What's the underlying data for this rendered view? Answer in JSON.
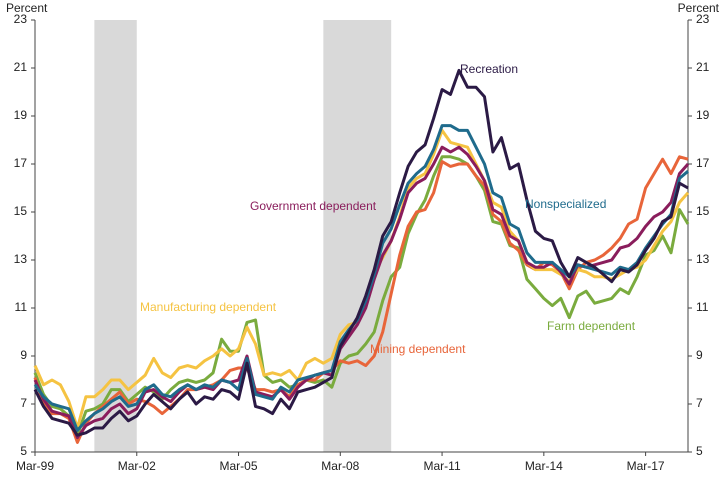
{
  "chart_data": {
    "type": "line",
    "y_label": "Percent",
    "y2_label": "Percent",
    "categories": [
      "Mar-99",
      null,
      null,
      null,
      null,
      null,
      null,
      null,
      null,
      null,
      null,
      null,
      "Mar-02",
      null,
      null,
      null,
      null,
      null,
      null,
      null,
      null,
      null,
      null,
      null,
      "Mar-05",
      null,
      null,
      null,
      null,
      null,
      null,
      null,
      null,
      null,
      null,
      null,
      "Mar-08",
      null,
      null,
      null,
      null,
      null,
      null,
      null,
      null,
      null,
      null,
      null,
      "Mar-11",
      null,
      null,
      null,
      null,
      null,
      null,
      null,
      null,
      null,
      null,
      null,
      "Mar-14",
      null,
      null,
      null,
      null,
      null,
      null,
      null,
      null,
      null,
      null,
      null,
      "Mar-17",
      null,
      null,
      null,
      null,
      null
    ],
    "recessions": [
      {
        "start": 7,
        "end": 12
      },
      {
        "start": 34,
        "end": 42
      }
    ],
    "recession_color": "#d9d9d9",
    "ylim": [
      5,
      23
    ],
    "yticks": [
      5,
      7,
      9,
      11,
      13,
      15,
      17,
      19,
      21,
      23
    ],
    "y2lim": [
      5,
      23
    ],
    "y2ticks": [
      5,
      7,
      9,
      11,
      13,
      15,
      17,
      19,
      21,
      23
    ],
    "grid": false,
    "series": [
      {
        "name": "Recreation",
        "color": "#2b1a45",
        "values": [
          7.6,
          6.9,
          6.4,
          6.3,
          6.2,
          5.7,
          5.8,
          6.0,
          6.0,
          6.4,
          6.7,
          6.3,
          6.5,
          7.0,
          7.4,
          7.1,
          6.8,
          7.2,
          7.5,
          7.0,
          7.3,
          7.2,
          7.6,
          7.5,
          7.2,
          8.7,
          6.9,
          6.8,
          6.6,
          7.2,
          6.8,
          7.5,
          7.6,
          7.7,
          7.9,
          8.1,
          9.4,
          10.0,
          10.6,
          11.5,
          12.6,
          14.0,
          14.6,
          15.8,
          16.9,
          17.5,
          17.8,
          18.9,
          20.1,
          19.9,
          20.9,
          20.2,
          20.2,
          19.8,
          17.5,
          18.1,
          16.8,
          17.0,
          15.5,
          14.2,
          13.9,
          13.8,
          12.9,
          12.3,
          13.1,
          12.9,
          12.7,
          12.4,
          12.1,
          12.6,
          12.5,
          12.8,
          13.4,
          13.9,
          14.6,
          14.8,
          16.2,
          16.0
        ]
      },
      {
        "name": "Nonspecialized",
        "color": "#1f6b8c",
        "values": [
          7.8,
          7.3,
          7.0,
          6.9,
          6.8,
          5.9,
          6.3,
          6.6,
          6.8,
          7.1,
          7.3,
          6.9,
          7.0,
          7.6,
          7.8,
          7.4,
          7.3,
          7.6,
          7.8,
          7.6,
          7.8,
          7.7,
          8.0,
          7.9,
          7.6,
          8.9,
          7.4,
          7.3,
          7.2,
          7.7,
          7.5,
          8.0,
          8.1,
          8.2,
          8.3,
          8.4,
          9.6,
          10.1,
          10.5,
          11.3,
          12.4,
          13.7,
          14.3,
          15.3,
          16.2,
          16.6,
          16.9,
          17.6,
          18.6,
          18.6,
          18.4,
          18.4,
          17.7,
          17.0,
          15.8,
          15.6,
          14.5,
          14.3,
          13.3,
          12.9,
          12.9,
          12.9,
          12.6,
          12.3,
          12.8,
          12.7,
          12.6,
          12.5,
          12.4,
          12.7,
          12.6,
          12.9,
          13.5,
          14.0,
          14.5,
          14.9,
          16.4,
          16.7
        ]
      },
      {
        "name": "Government dependent",
        "color": "#8a1d5c",
        "values": [
          8.0,
          7.2,
          6.7,
          6.6,
          6.5,
          5.6,
          6.1,
          6.3,
          6.4,
          6.8,
          7.0,
          6.6,
          6.8,
          7.5,
          7.6,
          7.3,
          7.1,
          7.5,
          7.8,
          7.6,
          7.7,
          7.6,
          8.0,
          7.9,
          8.0,
          9.0,
          7.5,
          7.4,
          7.3,
          7.6,
          7.2,
          7.7,
          8.0,
          8.2,
          8.3,
          8.2,
          9.3,
          9.8,
          10.3,
          11.0,
          12.2,
          13.2,
          13.8,
          14.7,
          15.8,
          16.2,
          16.4,
          17.0,
          17.7,
          17.5,
          17.7,
          17.4,
          16.9,
          16.3,
          15.1,
          14.9,
          14.0,
          13.8,
          12.9,
          12.7,
          12.7,
          12.9,
          12.5,
          12.0,
          12.8,
          12.7,
          12.8,
          12.9,
          13.0,
          13.5,
          13.6,
          13.9,
          14.4,
          14.8,
          15.0,
          15.4,
          16.6,
          17.0
        ]
      },
      {
        "name": "Manufacturing dependent",
        "color": "#f5c342",
        "values": [
          8.6,
          7.8,
          8.0,
          7.8,
          7.1,
          6.0,
          7.3,
          7.3,
          7.6,
          8.0,
          8.0,
          7.6,
          7.9,
          8.2,
          8.9,
          8.3,
          8.1,
          8.5,
          8.6,
          8.5,
          8.8,
          9.0,
          9.3,
          9.0,
          9.3,
          10.2,
          9.5,
          8.2,
          8.3,
          8.2,
          8.4,
          8.0,
          8.7,
          8.9,
          8.7,
          8.9,
          9.9,
          10.3,
          10.4,
          11.1,
          12.5,
          13.1,
          13.8,
          14.8,
          16.0,
          16.4,
          16.6,
          17.4,
          18.4,
          17.9,
          17.8,
          17.7,
          17.0,
          16.3,
          15.4,
          15.2,
          14.2,
          13.8,
          12.9,
          12.6,
          12.6,
          12.6,
          12.4,
          12.1,
          12.6,
          12.5,
          12.3,
          12.3,
          12.2,
          12.4,
          12.6,
          12.7,
          13.0,
          13.6,
          14.2,
          14.6,
          15.4,
          15.8
        ]
      },
      {
        "name": "Mining dependent",
        "color": "#e8653a",
        "values": [
          8.1,
          7.0,
          6.6,
          6.6,
          6.4,
          5.4,
          6.2,
          6.6,
          6.9,
          7.2,
          7.5,
          7.0,
          7.2,
          7.1,
          6.9,
          6.6,
          6.9,
          7.2,
          7.6,
          7.6,
          7.7,
          7.8,
          8.0,
          8.4,
          8.5,
          8.5,
          7.6,
          7.6,
          7.5,
          7.6,
          7.3,
          7.8,
          8.0,
          8.0,
          8.3,
          8.4,
          8.8,
          8.7,
          8.8,
          8.6,
          9.0,
          10.0,
          11.6,
          13.2,
          14.4,
          15.0,
          15.1,
          15.8,
          17.1,
          16.9,
          17.0,
          17.0,
          16.5,
          16.1,
          14.9,
          14.6,
          13.7,
          13.4,
          12.8,
          12.6,
          12.9,
          12.8,
          12.5,
          11.8,
          12.6,
          12.9,
          13.0,
          13.2,
          13.5,
          13.9,
          14.5,
          14.7,
          16.0,
          16.6,
          17.2,
          16.6,
          17.3,
          17.2
        ]
      },
      {
        "name": "Farm dependent",
        "color": "#7aab3e",
        "values": [
          8.3,
          7.4,
          6.9,
          6.8,
          6.5,
          5.7,
          6.7,
          6.8,
          7.0,
          7.6,
          7.6,
          7.1,
          7.4,
          7.7,
          7.5,
          7.2,
          7.6,
          7.9,
          8.0,
          7.9,
          8.0,
          8.3,
          9.7,
          9.2,
          9.2,
          10.4,
          10.5,
          8.2,
          7.9,
          8.0,
          7.7,
          7.8,
          8.0,
          7.9,
          8.0,
          7.7,
          8.7,
          9.0,
          9.1,
          9.5,
          10.0,
          11.3,
          12.3,
          12.7,
          14.1,
          14.9,
          15.5,
          16.5,
          17.3,
          17.3,
          17.2,
          17.0,
          16.5,
          15.9,
          14.6,
          14.5,
          13.6,
          13.5,
          12.2,
          11.8,
          11.4,
          11.1,
          11.4,
          10.6,
          11.5,
          11.7,
          11.2,
          11.3,
          11.4,
          11.8,
          11.6,
          12.3,
          13.2,
          13.4,
          14.0,
          13.3,
          15.1,
          14.5
        ]
      }
    ]
  }
}
